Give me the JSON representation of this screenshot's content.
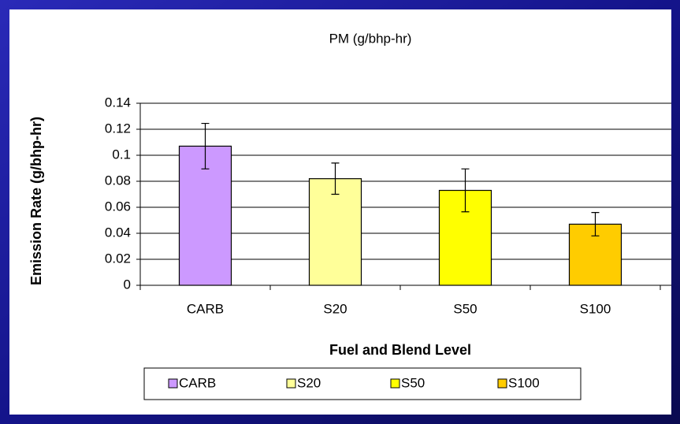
{
  "chart_data": {
    "type": "bar",
    "title": "PM (g/bhp-hr)",
    "x_label": "Fuel and Blend Level",
    "y_label": "Emission Rate (g/bhp-hr)",
    "categories": [
      "CARB",
      "S20",
      "S50",
      "S100"
    ],
    "values": [
      0.107,
      0.082,
      0.073,
      0.047
    ],
    "errors": [
      0.0175,
      0.012,
      0.0165,
      0.009
    ],
    "colors": [
      "#cc99ff",
      "#ffff99",
      "#ffff00",
      "#ffcc00"
    ],
    "ylim": [
      0,
      0.14
    ],
    "yticks": [
      0,
      0.02,
      0.04,
      0.06,
      0.08,
      0.1,
      0.12,
      0.14
    ],
    "grid": true,
    "legend": "bottom"
  }
}
